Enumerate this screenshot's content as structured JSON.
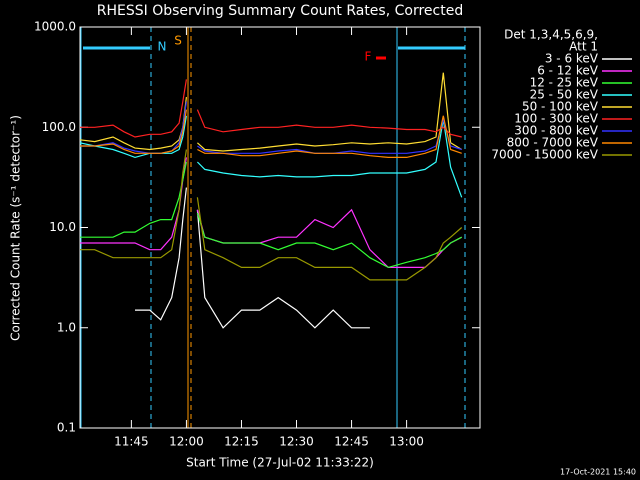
{
  "chart_data": {
    "type": "line",
    "title": "RHESSI Observing Summary Count Rates, Corrected",
    "x_label": "Start Time (27-Jul-02 11:33:22)",
    "y_label": "Corrected Count Rate (s⁻¹ detector⁻¹)",
    "legend_header": [
      "Det 1,3,4,5,6,9,",
      "Att 1"
    ],
    "footer": "17-Oct-2021 15:40",
    "annotations": [
      {
        "text": "N",
        "color": "#33ccff"
      },
      {
        "text": "S",
        "color": "#ff9900"
      },
      {
        "text": "F",
        "color": "#ff0000"
      }
    ],
    "log_scale": true,
    "grid": false,
    "xlim": [
      "11:31",
      "13:20"
    ],
    "xticks": [
      "11:45",
      "12:00",
      "12:15",
      "12:30",
      "12:45",
      "13:00"
    ],
    "ylim": [
      0.1,
      1000
    ],
    "yticks": [
      {
        "value": 0.1,
        "label": "0.1"
      },
      {
        "value": 1,
        "label": "1.0"
      },
      {
        "value": 10,
        "label": "10.0"
      },
      {
        "value": 100,
        "label": "100.0"
      },
      {
        "value": 1000,
        "label": "1000.0"
      }
    ],
    "x": [
      "11:31",
      "11:35",
      "11:40",
      "11:43",
      "11:46",
      "11:50",
      "11:53",
      "11:56",
      "11:58",
      "11:59",
      "12:00",
      "12:01",
      "12:03",
      "12:05",
      "12:10",
      "12:15",
      "12:20",
      "12:25",
      "12:30",
      "12:35",
      "12:40",
      "12:45",
      "12:50",
      "12:55",
      "13:00",
      "13:05",
      "13:08",
      "13:10",
      "13:12",
      "13:15"
    ],
    "series": [
      {
        "name": "3 - 6 keV",
        "color": "#ffffff",
        "values": [
          null,
          null,
          null,
          null,
          1.5,
          1.5,
          1.2,
          2,
          5,
          12,
          25,
          null,
          15,
          2,
          1,
          1.5,
          1.5,
          2,
          1.5,
          1,
          1.5,
          1,
          1,
          null,
          null,
          null,
          null,
          null,
          null,
          null
        ]
      },
      {
        "name": "6 - 12 keV",
        "color": "#ff33ff",
        "values": [
          7,
          7,
          7,
          7,
          7,
          6,
          6,
          8,
          15,
          30,
          50,
          null,
          15,
          8,
          7,
          7,
          7,
          8,
          8,
          12,
          10,
          15,
          6,
          4,
          4,
          4,
          5,
          6,
          7,
          8
        ]
      },
      {
        "name": "12 - 25 keV",
        "color": "#33ff33",
        "values": [
          8,
          8,
          8,
          9,
          9,
          11,
          12,
          12,
          20,
          30,
          45,
          null,
          14,
          8,
          7,
          7,
          7,
          6,
          7,
          7,
          6,
          7,
          5,
          4,
          4.5,
          5,
          5.5,
          6,
          7,
          8
        ]
      },
      {
        "name": "25 - 50 keV",
        "color": "#33ffff",
        "values": [
          70,
          65,
          60,
          55,
          50,
          55,
          55,
          55,
          60,
          80,
          130,
          null,
          45,
          38,
          35,
          33,
          32,
          33,
          32,
          32,
          33,
          33,
          35,
          35,
          35,
          38,
          45,
          120,
          40,
          20
        ]
      },
      {
        "name": "50 - 100 keV",
        "color": "#ffdd33",
        "values": [
          75,
          72,
          80,
          70,
          62,
          60,
          62,
          65,
          75,
          100,
          200,
          null,
          70,
          60,
          58,
          60,
          62,
          65,
          68,
          65,
          67,
          70,
          68,
          70,
          68,
          72,
          80,
          350,
          70,
          60
        ]
      },
      {
        "name": "100 - 300 keV",
        "color": "#ff2222",
        "values": [
          100,
          100,
          105,
          90,
          80,
          85,
          85,
          90,
          110,
          180,
          300,
          null,
          150,
          100,
          90,
          95,
          100,
          100,
          105,
          100,
          100,
          105,
          100,
          98,
          95,
          95,
          90,
          100,
          85,
          80
        ]
      },
      {
        "name": "300 - 800 keV",
        "color": "#3333ff",
        "values": [
          65,
          65,
          70,
          62,
          58,
          55,
          55,
          58,
          70,
          100,
          180,
          null,
          65,
          58,
          55,
          55,
          55,
          58,
          60,
          55,
          55,
          58,
          55,
          55,
          55,
          58,
          65,
          120,
          65,
          60
        ]
      },
      {
        "name": "800 - 7000 keV",
        "color": "#ff8800",
        "values": [
          65,
          65,
          68,
          60,
          55,
          55,
          55,
          58,
          65,
          90,
          150,
          null,
          60,
          55,
          55,
          52,
          52,
          55,
          58,
          55,
          55,
          55,
          52,
          50,
          50,
          55,
          60,
          130,
          60,
          55
        ]
      },
      {
        "name": "7000 - 15000 keV",
        "color": "#999900",
        "values": [
          6,
          6,
          5,
          5,
          5,
          5,
          5,
          6,
          15,
          35,
          60,
          null,
          20,
          6,
          5,
          4,
          4,
          5,
          5,
          4,
          4,
          4,
          3,
          3,
          3,
          4,
          5,
          7,
          8,
          10
        ]
      }
    ]
  }
}
